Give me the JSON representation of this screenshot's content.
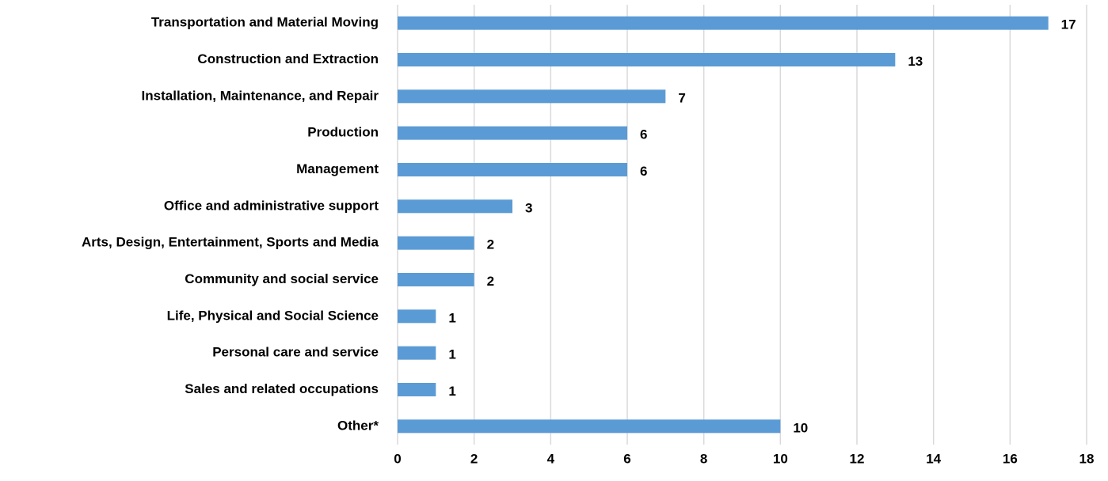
{
  "chart_data": {
    "type": "bar",
    "orientation": "horizontal",
    "categories": [
      "Transportation and Material Moving",
      "Construction and Extraction",
      "Installation, Maintenance, and Repair",
      "Production",
      "Management",
      "Office and administrative support",
      "Arts, Design, Entertainment, Sports and Media",
      "Community and social service",
      "Life, Physical and Social Science",
      "Personal care and service",
      "Sales and related occupations",
      "Other*"
    ],
    "values": [
      17,
      13,
      7,
      6,
      6,
      3,
      2,
      2,
      1,
      1,
      1,
      10
    ],
    "color": "#5b9bd5",
    "xlim": [
      0,
      18
    ],
    "xticks": [
      0,
      2,
      4,
      6,
      8,
      10,
      12,
      14,
      16,
      18
    ],
    "grid": true
  }
}
